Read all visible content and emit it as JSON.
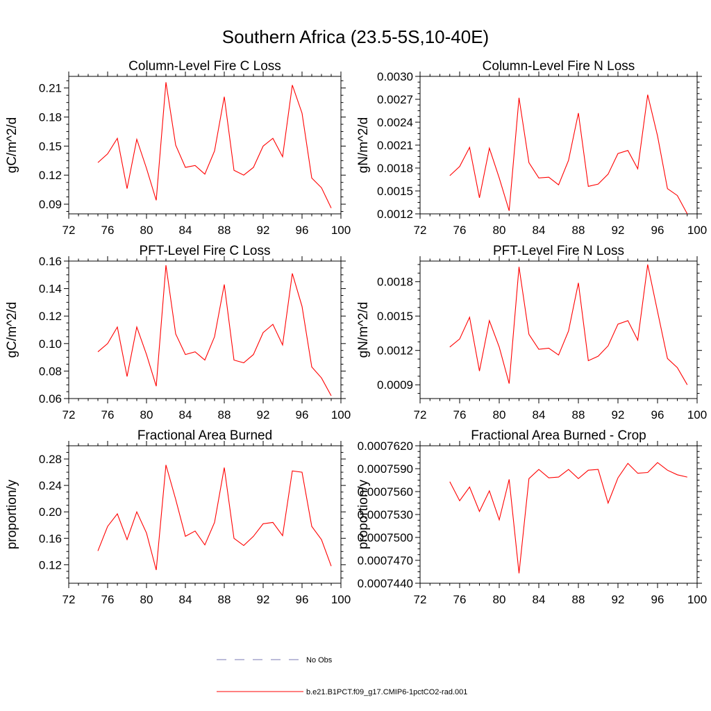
{
  "figure": {
    "title": "Southern Africa (23.5-5S,10-40E)",
    "line_color": "#ff0000",
    "obs_color": "#7a7ab4"
  },
  "legend": {
    "placement": "bottom-center",
    "items": [
      {
        "label": "No Obs",
        "style": "dashed",
        "color": "#7a7ab4"
      },
      {
        "label": "b.e21.B1PCT.f09_g17.CMIP6-1pctCO2-rad.001",
        "style": "solid",
        "color": "#ff0000"
      }
    ]
  },
  "chart_data": [
    {
      "type": "line",
      "title": "Column-Level Fire C Loss",
      "xlabel": "",
      "ylabel": "gC/m^2/d",
      "xlim": [
        72,
        100
      ],
      "ylim": [
        0.08,
        0.222
      ],
      "xticks": [
        72,
        76,
        80,
        84,
        88,
        92,
        96,
        100
      ],
      "yticks": [
        0.09,
        0.12,
        0.15,
        0.18,
        0.21
      ],
      "ytick_labels": [
        "0.09",
        "0.12",
        "0.15",
        "0.18",
        "0.21"
      ],
      "x": [
        75,
        76,
        77,
        78,
        79,
        80,
        81,
        82,
        83,
        84,
        85,
        86,
        87,
        88,
        89,
        90,
        91,
        92,
        93,
        94,
        95,
        96,
        97,
        98,
        99
      ],
      "series": [
        {
          "values": [
            0.133,
            0.142,
            0.158,
            0.106,
            0.157,
            0.127,
            0.094,
            0.216,
            0.151,
            0.128,
            0.13,
            0.121,
            0.145,
            0.201,
            0.125,
            0.12,
            0.128,
            0.15,
            0.158,
            0.139,
            0.213,
            0.184,
            0.117,
            0.107,
            0.086
          ]
        }
      ]
    },
    {
      "type": "line",
      "title": "Column-Level Fire N Loss",
      "xlabel": "",
      "ylabel": "gN/m^2/d",
      "xlim": [
        72,
        100
      ],
      "ylim": [
        0.0012,
        0.003
      ],
      "xticks": [
        72,
        76,
        80,
        84,
        88,
        92,
        96,
        100
      ],
      "yticks": [
        0.0012,
        0.0015,
        0.0018,
        0.0021,
        0.0024,
        0.0027,
        0.003
      ],
      "ytick_labels": [
        "0.0012",
        "0.0015",
        "0.0018",
        "0.0021",
        "0.0024",
        "0.0027",
        "0.0030"
      ],
      "x": [
        75,
        76,
        77,
        78,
        79,
        80,
        81,
        82,
        83,
        84,
        85,
        86,
        87,
        88,
        89,
        90,
        91,
        92,
        93,
        94,
        95,
        96,
        97,
        98,
        99
      ],
      "series": [
        {
          "values": [
            0.0017,
            0.00182,
            0.00207,
            0.00141,
            0.00206,
            0.00167,
            0.00124,
            0.00272,
            0.00187,
            0.00167,
            0.00168,
            0.00158,
            0.0019,
            0.00252,
            0.00156,
            0.00159,
            0.00172,
            0.00199,
            0.00203,
            0.00179,
            0.00276,
            0.00222,
            0.00153,
            0.00144,
            0.0012
          ]
        }
      ]
    },
    {
      "type": "line",
      "title": "PFT-Level Fire C Loss",
      "xlabel": "",
      "ylabel": "gC/m^2/d",
      "xlim": [
        72,
        100
      ],
      "ylim": [
        0.06,
        0.16
      ],
      "xticks": [
        72,
        76,
        80,
        84,
        88,
        92,
        96,
        100
      ],
      "yticks": [
        0.06,
        0.08,
        0.1,
        0.12,
        0.14,
        0.16
      ],
      "ytick_labels": [
        "0.06",
        "0.08",
        "0.10",
        "0.12",
        "0.14",
        "0.16"
      ],
      "x": [
        75,
        76,
        77,
        78,
        79,
        80,
        81,
        82,
        83,
        84,
        85,
        86,
        87,
        88,
        89,
        90,
        91,
        92,
        93,
        94,
        95,
        96,
        97,
        98,
        99
      ],
      "series": [
        {
          "values": [
            0.094,
            0.1,
            0.112,
            0.076,
            0.112,
            0.092,
            0.069,
            0.157,
            0.107,
            0.092,
            0.094,
            0.088,
            0.105,
            0.143,
            0.088,
            0.086,
            0.092,
            0.108,
            0.114,
            0.099,
            0.151,
            0.127,
            0.083,
            0.075,
            0.062
          ]
        }
      ]
    },
    {
      "type": "line",
      "title": "PFT-Level Fire N Loss",
      "xlabel": "",
      "ylabel": "gN/m^2/d",
      "xlim": [
        72,
        100
      ],
      "ylim": [
        0.00078,
        0.00198
      ],
      "xticks": [
        72,
        76,
        80,
        84,
        88,
        92,
        96,
        100
      ],
      "yticks": [
        0.0009,
        0.0012,
        0.0015,
        0.0018
      ],
      "ytick_labels": [
        "0.0009",
        "0.0012",
        "0.0015",
        "0.0018"
      ],
      "x": [
        75,
        76,
        77,
        78,
        79,
        80,
        81,
        82,
        83,
        84,
        85,
        86,
        87,
        88,
        89,
        90,
        91,
        92,
        93,
        94,
        95,
        96,
        97,
        98,
        99
      ],
      "series": [
        {
          "values": [
            0.00123,
            0.0013,
            0.00149,
            0.00102,
            0.00146,
            0.00123,
            0.00091,
            0.00193,
            0.00134,
            0.00121,
            0.00122,
            0.00116,
            0.00137,
            0.00179,
            0.00111,
            0.00115,
            0.00124,
            0.00143,
            0.00146,
            0.00129,
            0.00195,
            0.00154,
            0.00113,
            0.00105,
            0.0009
          ]
        }
      ]
    },
    {
      "type": "line",
      "title": "Fractional Area Burned",
      "xlabel": "",
      "ylabel": "proportion/y",
      "xlim": [
        72,
        100
      ],
      "ylim": [
        0.092,
        0.3
      ],
      "xticks": [
        72,
        76,
        80,
        84,
        88,
        92,
        96,
        100
      ],
      "yticks": [
        0.12,
        0.16,
        0.2,
        0.24,
        0.28
      ],
      "ytick_labels": [
        "0.12",
        "0.16",
        "0.20",
        "0.24",
        "0.28"
      ],
      "x": [
        75,
        76,
        77,
        78,
        79,
        80,
        81,
        82,
        83,
        84,
        85,
        86,
        87,
        88,
        89,
        90,
        91,
        92,
        93,
        94,
        95,
        96,
        97,
        98,
        99
      ],
      "series": [
        {
          "values": [
            0.141,
            0.178,
            0.197,
            0.158,
            0.2,
            0.168,
            0.112,
            0.271,
            0.219,
            0.163,
            0.171,
            0.15,
            0.184,
            0.267,
            0.16,
            0.149,
            0.163,
            0.182,
            0.184,
            0.164,
            0.262,
            0.26,
            0.178,
            0.158,
            0.118
          ]
        }
      ]
    },
    {
      "type": "line",
      "title": "Fractional Area Burned - Crop",
      "xlabel": "",
      "ylabel": "proportion/y",
      "xlim": [
        72,
        100
      ],
      "ylim": [
        0.000744,
        0.000762
      ],
      "xticks": [
        72,
        76,
        80,
        84,
        88,
        92,
        96,
        100
      ],
      "yticks": [
        0.000744,
        0.000747,
        0.00075,
        0.000753,
        0.000756,
        0.000759,
        0.000762
      ],
      "ytick_labels": [
        "0.0007440",
        "0.0007470",
        "0.0007500",
        "0.0007530",
        "0.0007560",
        "0.0007590",
        "0.0007620"
      ],
      "x": [
        75,
        76,
        77,
        78,
        79,
        80,
        81,
        82,
        83,
        84,
        85,
        86,
        87,
        88,
        89,
        90,
        91,
        92,
        93,
        94,
        95,
        96,
        97,
        98,
        99
      ],
      "series": [
        {
          "values": [
            0.0007573,
            0.0007548,
            0.0007566,
            0.0007534,
            0.0007561,
            0.0007523,
            0.0007576,
            0.0007453,
            0.0007577,
            0.0007589,
            0.0007578,
            0.0007579,
            0.0007589,
            0.0007577,
            0.0007588,
            0.0007589,
            0.0007545,
            0.0007578,
            0.0007597,
            0.0007584,
            0.0007585,
            0.0007598,
            0.0007588,
            0.0007582,
            0.0007579
          ]
        }
      ]
    }
  ]
}
